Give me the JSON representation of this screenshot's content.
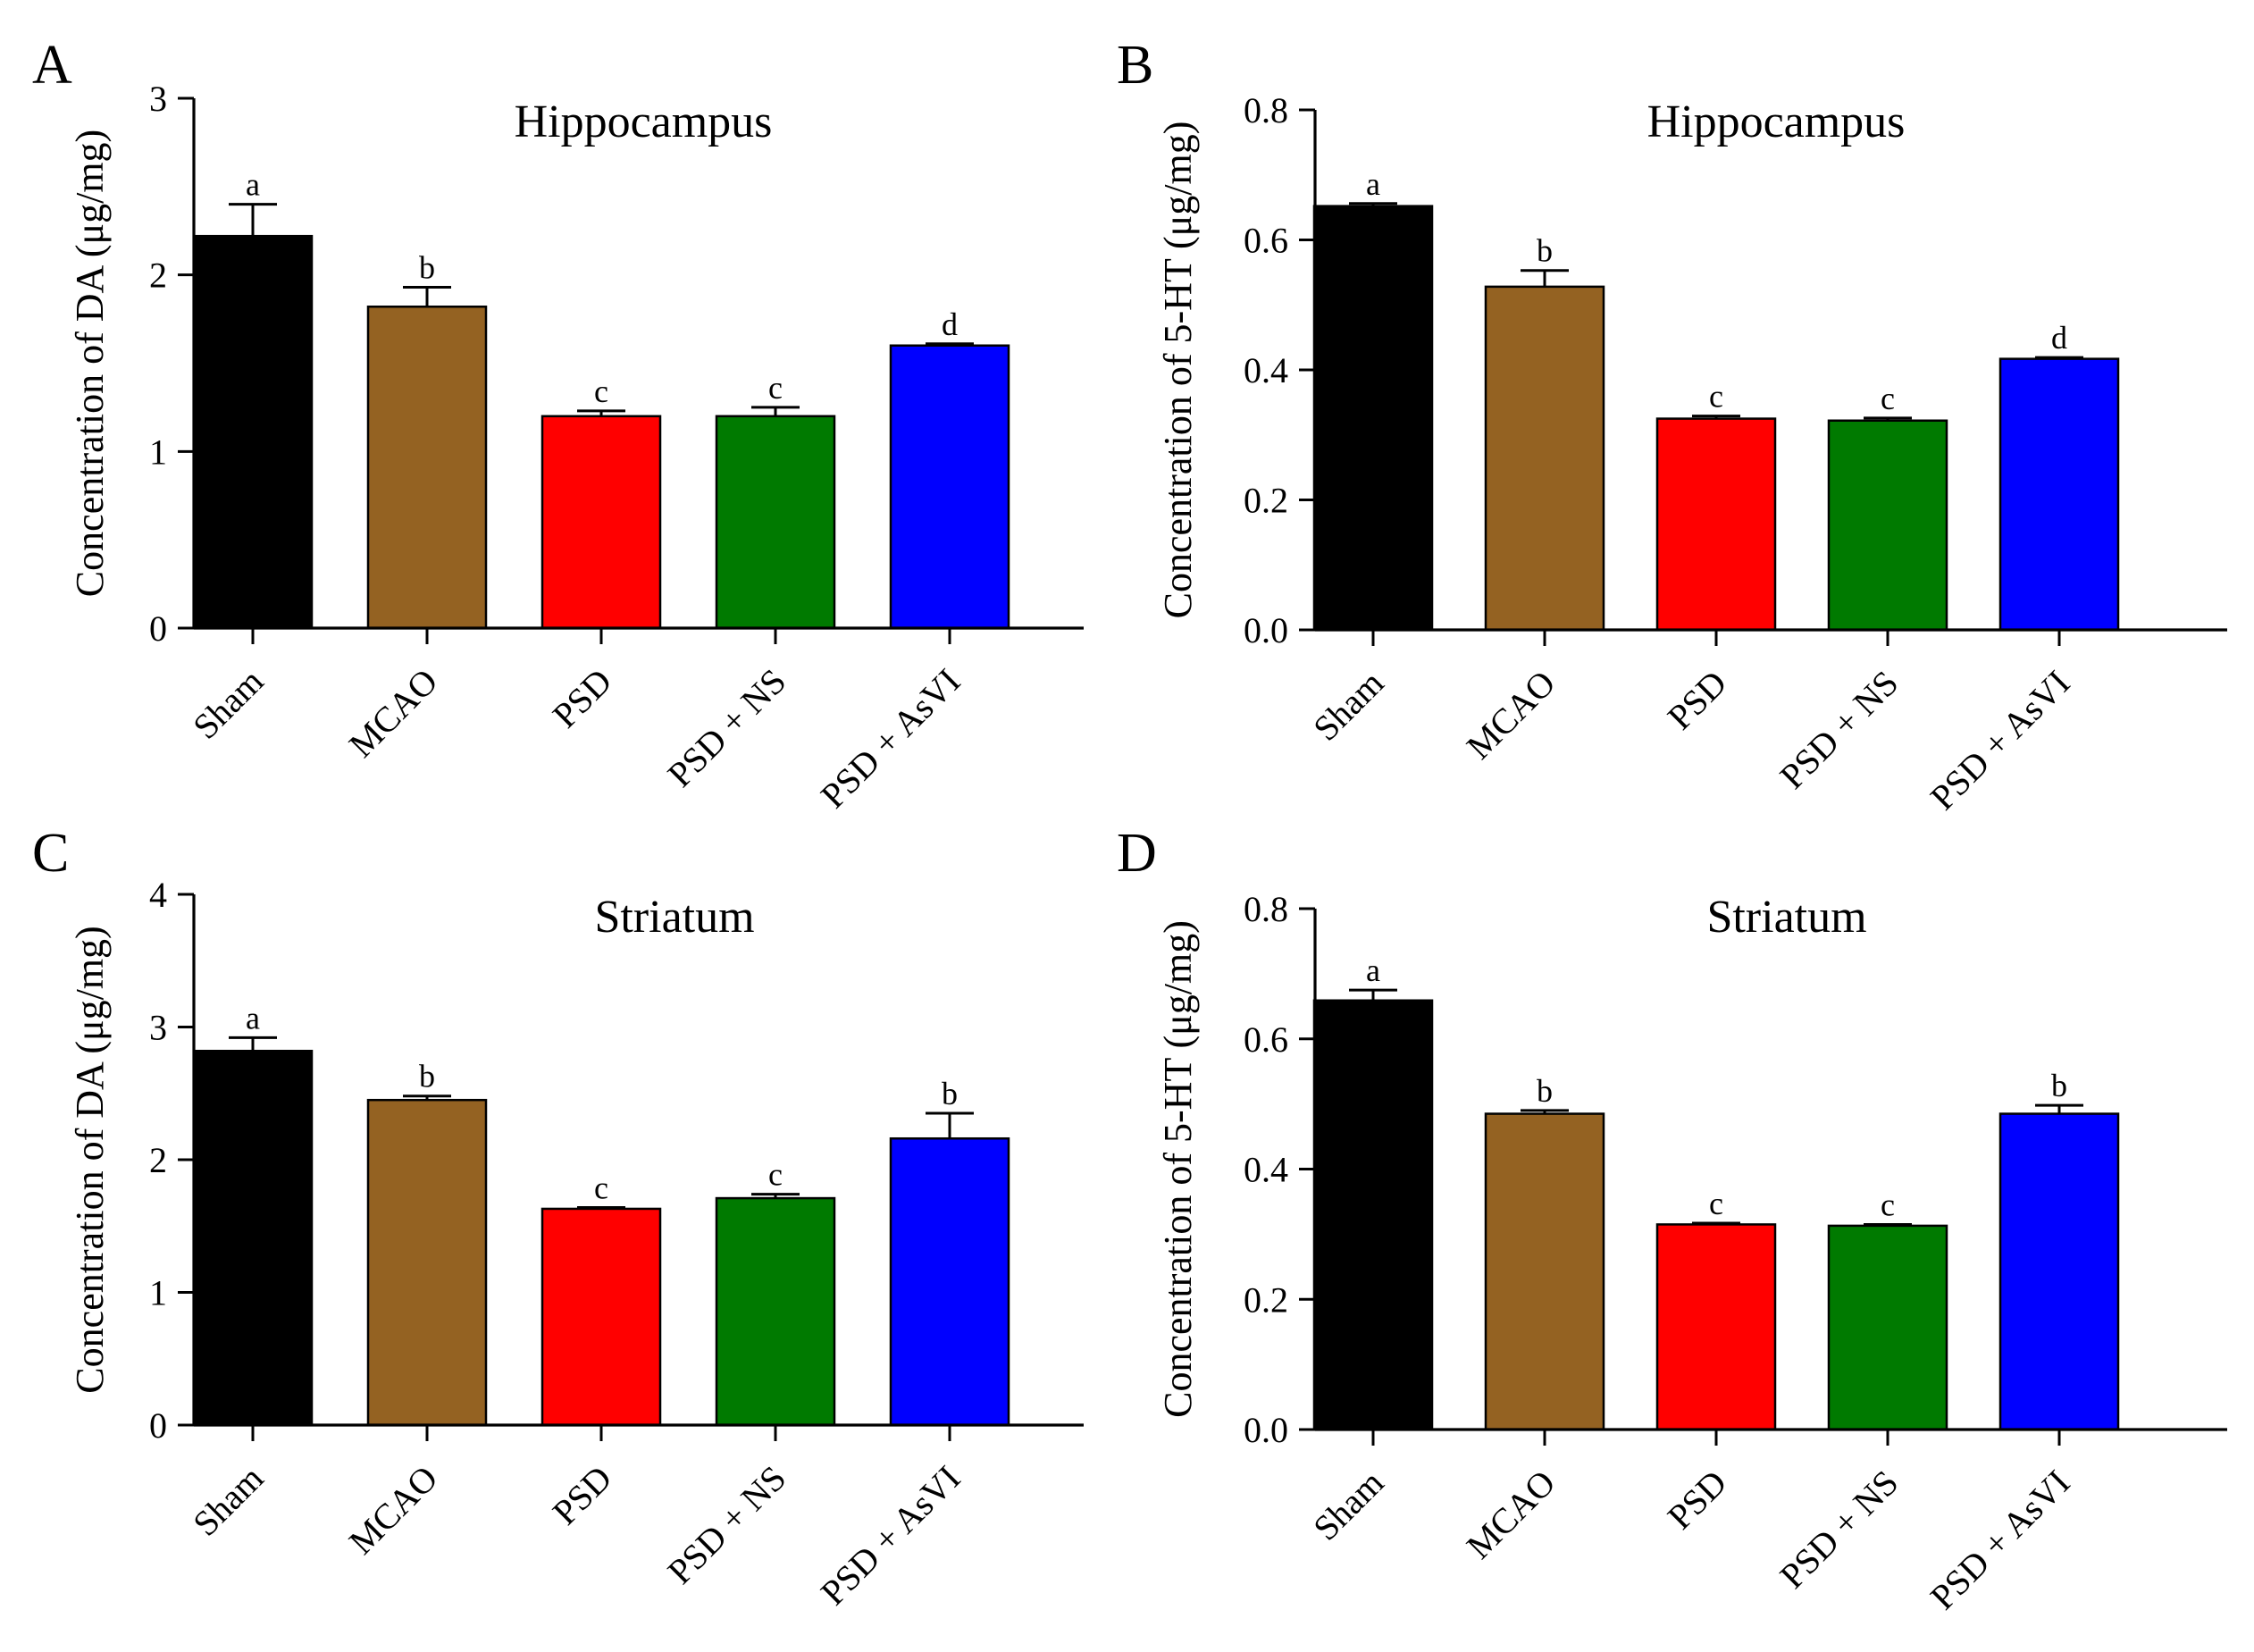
{
  "figure": {
    "panels": [
      {
        "letter": "A"
      },
      {
        "letter": "B"
      },
      {
        "letter": "C"
      },
      {
        "letter": "D"
      }
    ]
  },
  "chart_data": [
    {
      "panel": "A",
      "type": "bar",
      "title": "Hippocampus",
      "xlabel": "",
      "ylabel": "Concentration of DA (μg/mg)",
      "ylim": [
        0,
        3
      ],
      "yticks": [
        "0",
        "1",
        "2",
        "3"
      ],
      "categories": [
        "Sham",
        "MCAO",
        "PSD",
        "PSD + NS",
        "PSD + AsVI"
      ],
      "values": [
        2.22,
        1.82,
        1.2,
        1.2,
        1.6
      ],
      "errors": [
        0.18,
        0.11,
        0.03,
        0.05,
        0.01
      ],
      "significance": [
        "a",
        "b",
        "c",
        "c",
        "d"
      ],
      "colors": [
        "#000000",
        "#946222",
        "#ff0000",
        "#007a00",
        "#0000ff"
      ]
    },
    {
      "panel": "B",
      "type": "bar",
      "title": "Hippocampus",
      "xlabel": "",
      "ylabel": "Concentration of 5-HT (μg/mg)",
      "ylim": [
        0,
        0.8
      ],
      "yticks": [
        "0.0",
        "0.2",
        "0.4",
        "0.6",
        "0.8"
      ],
      "categories": [
        "Sham",
        "MCAO",
        "PSD",
        "PSD + NS",
        "PSD + AsVI"
      ],
      "values": [
        0.652,
        0.528,
        0.325,
        0.322,
        0.417
      ],
      "errors": [
        0.004,
        0.025,
        0.004,
        0.004,
        0.002
      ],
      "significance": [
        "a",
        "b",
        "c",
        "c",
        "d"
      ],
      "colors": [
        "#000000",
        "#946222",
        "#ff0000",
        "#007a00",
        "#0000ff"
      ]
    },
    {
      "panel": "C",
      "type": "bar",
      "title": "Striatum",
      "xlabel": "",
      "ylabel": "Concentration of DA (μg/mg)",
      "ylim": [
        0,
        4
      ],
      "yticks": [
        "0",
        "1",
        "2",
        "3",
        "4"
      ],
      "categories": [
        "Sham",
        "MCAO",
        "PSD",
        "PSD + NS",
        "PSD + AsVI"
      ],
      "values": [
        2.82,
        2.45,
        1.63,
        1.71,
        2.16
      ],
      "errors": [
        0.1,
        0.03,
        0.01,
        0.03,
        0.19
      ],
      "significance": [
        "a",
        "b",
        "c",
        "c",
        "b"
      ],
      "colors": [
        "#000000",
        "#946222",
        "#ff0000",
        "#007a00",
        "#0000ff"
      ]
    },
    {
      "panel": "D",
      "type": "bar",
      "title": "Striatum",
      "xlabel": "",
      "ylabel": "Concentration of 5-HT (μg/mg)",
      "ylim": [
        0,
        0.8
      ],
      "yticks": [
        "0.0",
        "0.2",
        "0.4",
        "0.6",
        "0.8"
      ],
      "categories": [
        "Sham",
        "MCAO",
        "PSD",
        "PSD + NS",
        "PSD + AsVI"
      ],
      "values": [
        0.659,
        0.485,
        0.315,
        0.313,
        0.485
      ],
      "errors": [
        0.016,
        0.005,
        0.002,
        0.002,
        0.013
      ],
      "significance": [
        "a",
        "b",
        "c",
        "c",
        "b"
      ],
      "colors": [
        "#000000",
        "#946222",
        "#ff0000",
        "#007a00",
        "#0000ff"
      ]
    }
  ]
}
